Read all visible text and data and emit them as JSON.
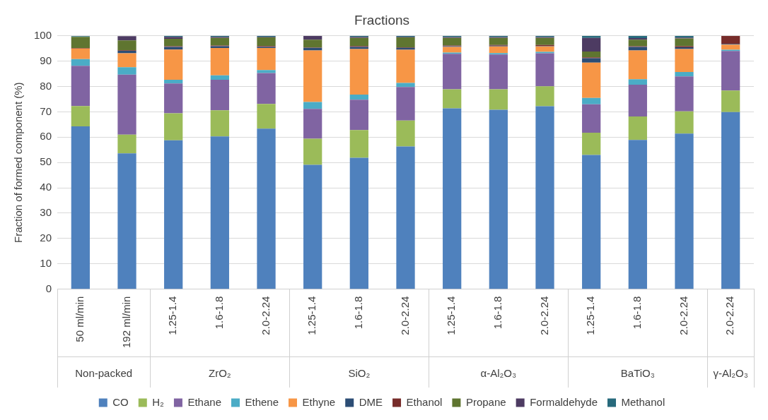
{
  "chart_data": {
    "type": "bar",
    "title": "Fractions",
    "ylabel": "Fraction of formed component (%)",
    "stacked": true,
    "categories": [
      "50 ml/min",
      "192 ml/min",
      "1.25-1.4",
      "1.6-1.8",
      "2.0-2.24",
      "1.25-1.4",
      "1.6-1.8",
      "2.0-2.24",
      "1.25-1.4",
      "1.6-1.8",
      "2.0-2.24",
      "1.25-1.4",
      "1.6-1.8",
      "2.0-2.24",
      "2.0-2.24"
    ],
    "annotations": [
      "Non-packed",
      "ZrO₂",
      "SiO₂",
      "α-Al₂O₃",
      "BaTiO₃",
      "γ-Al₂O₃"
    ],
    "series": [
      {
        "name": "CO",
        "color": "#4f81bd",
        "values": [
          64.3,
          53.6,
          58.8,
          60.3,
          63.4,
          49.1,
          51.9,
          56.3,
          71.4,
          70.8,
          72.2,
          53.0,
          58.9,
          61.4,
          69.9
        ]
      },
      {
        "name": "H₂",
        "color": "#9bbb59",
        "values": [
          8.0,
          7.4,
          10.6,
          10.3,
          9.7,
          10.3,
          10.9,
          10.3,
          7.5,
          8.1,
          7.9,
          8.8,
          9.3,
          8.8,
          8.5
        ]
      },
      {
        "name": "Ethane",
        "color": "#8064a2",
        "values": [
          15.9,
          23.7,
          11.8,
          12.1,
          12.2,
          11.8,
          12.0,
          13.2,
          14.0,
          13.7,
          13.0,
          11.2,
          12.5,
          13.8,
          15.6
        ]
      },
      {
        "name": "Ethene",
        "color": "#4bacc6",
        "values": [
          2.6,
          2.9,
          1.5,
          1.7,
          1.2,
          2.7,
          2.0,
          1.6,
          0.5,
          0.6,
          0.6,
          2.5,
          2.2,
          1.7,
          0.5
        ]
      },
      {
        "name": "Ethyne",
        "color": "#f79646",
        "values": [
          4.2,
          5.5,
          11.9,
          10.8,
          8.7,
          20.3,
          18.0,
          13.1,
          2.2,
          2.6,
          2.1,
          13.9,
          11.3,
          9.1,
          2.0
        ]
      },
      {
        "name": "DME",
        "color": "#2c4d75",
        "values": [
          null,
          1.0,
          1.0,
          0.7,
          0.4,
          1.1,
          0.8,
          0.8,
          0.3,
          0.3,
          0.2,
          1.8,
          1.4,
          0.7,
          0.3
        ]
      },
      {
        "name": "Ethanol",
        "color": "#772c2a",
        "values": [
          0.2,
          0.2,
          0.3,
          0.3,
          0.4,
          0.1,
          0.4,
          0.2,
          0.3,
          0.3,
          0.4,
          0.3,
          0.3,
          0.4,
          3.2
        ]
      },
      {
        "name": "Propane",
        "color": "#5f7530",
        "values": [
          4.4,
          3.9,
          2.9,
          3.0,
          3.4,
          3.1,
          3.2,
          3.9,
          3.0,
          2.8,
          2.8,
          2.3,
          2.6,
          3.1,
          0
        ]
      },
      {
        "name": "Formaldehyde",
        "color": "#4d3b62",
        "values": [
          0,
          1.7,
          0.8,
          0.4,
          0.2,
          1.5,
          0.4,
          0.2,
          0.3,
          0.3,
          0.3,
          5.4,
          0.6,
          0.3,
          0
        ]
      },
      {
        "name": "Methanol",
        "color": "#276a7c",
        "values": [
          0.3,
          null,
          0.4,
          0.4,
          0.4,
          0,
          0.4,
          0.4,
          0.5,
          0.5,
          0.5,
          0.8,
          0.9,
          0.7,
          0
        ]
      }
    ],
    "ylim": [
      0,
      100
    ],
    "yticks": [
      0,
      10,
      20,
      30,
      40,
      50,
      60,
      70,
      80,
      90,
      100
    ],
    "grid": "y",
    "legend": "bottom"
  }
}
